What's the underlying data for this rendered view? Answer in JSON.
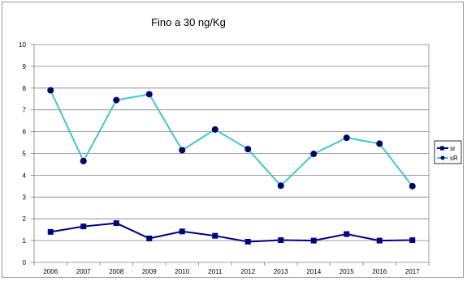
{
  "chart_data": {
    "type": "line",
    "title": "Fino a 30 ng/Kg",
    "xlabel": "",
    "ylabel": "",
    "categories": [
      "2006",
      "2007",
      "2008",
      "2009",
      "2010",
      "2011",
      "2012",
      "2013",
      "2014",
      "2015",
      "2016",
      "2017"
    ],
    "ylim": [
      0,
      10
    ],
    "yticks": [
      0,
      1,
      2,
      3,
      4,
      5,
      6,
      7,
      8,
      9,
      10
    ],
    "grid": true,
    "legend_position": "right",
    "series": [
      {
        "name": "sr",
        "color": "#000080",
        "marker": "square",
        "values": [
          1.4,
          1.65,
          1.8,
          1.1,
          1.42,
          1.22,
          0.95,
          1.02,
          1.0,
          1.3,
          1.0,
          1.02
        ]
      },
      {
        "name": "sR",
        "color": "#40c8c8",
        "marker_color": "#000066",
        "marker": "circle",
        "values": [
          7.9,
          4.65,
          7.45,
          7.72,
          5.15,
          6.1,
          5.2,
          3.52,
          4.98,
          5.72,
          5.45,
          3.5
        ]
      }
    ]
  }
}
